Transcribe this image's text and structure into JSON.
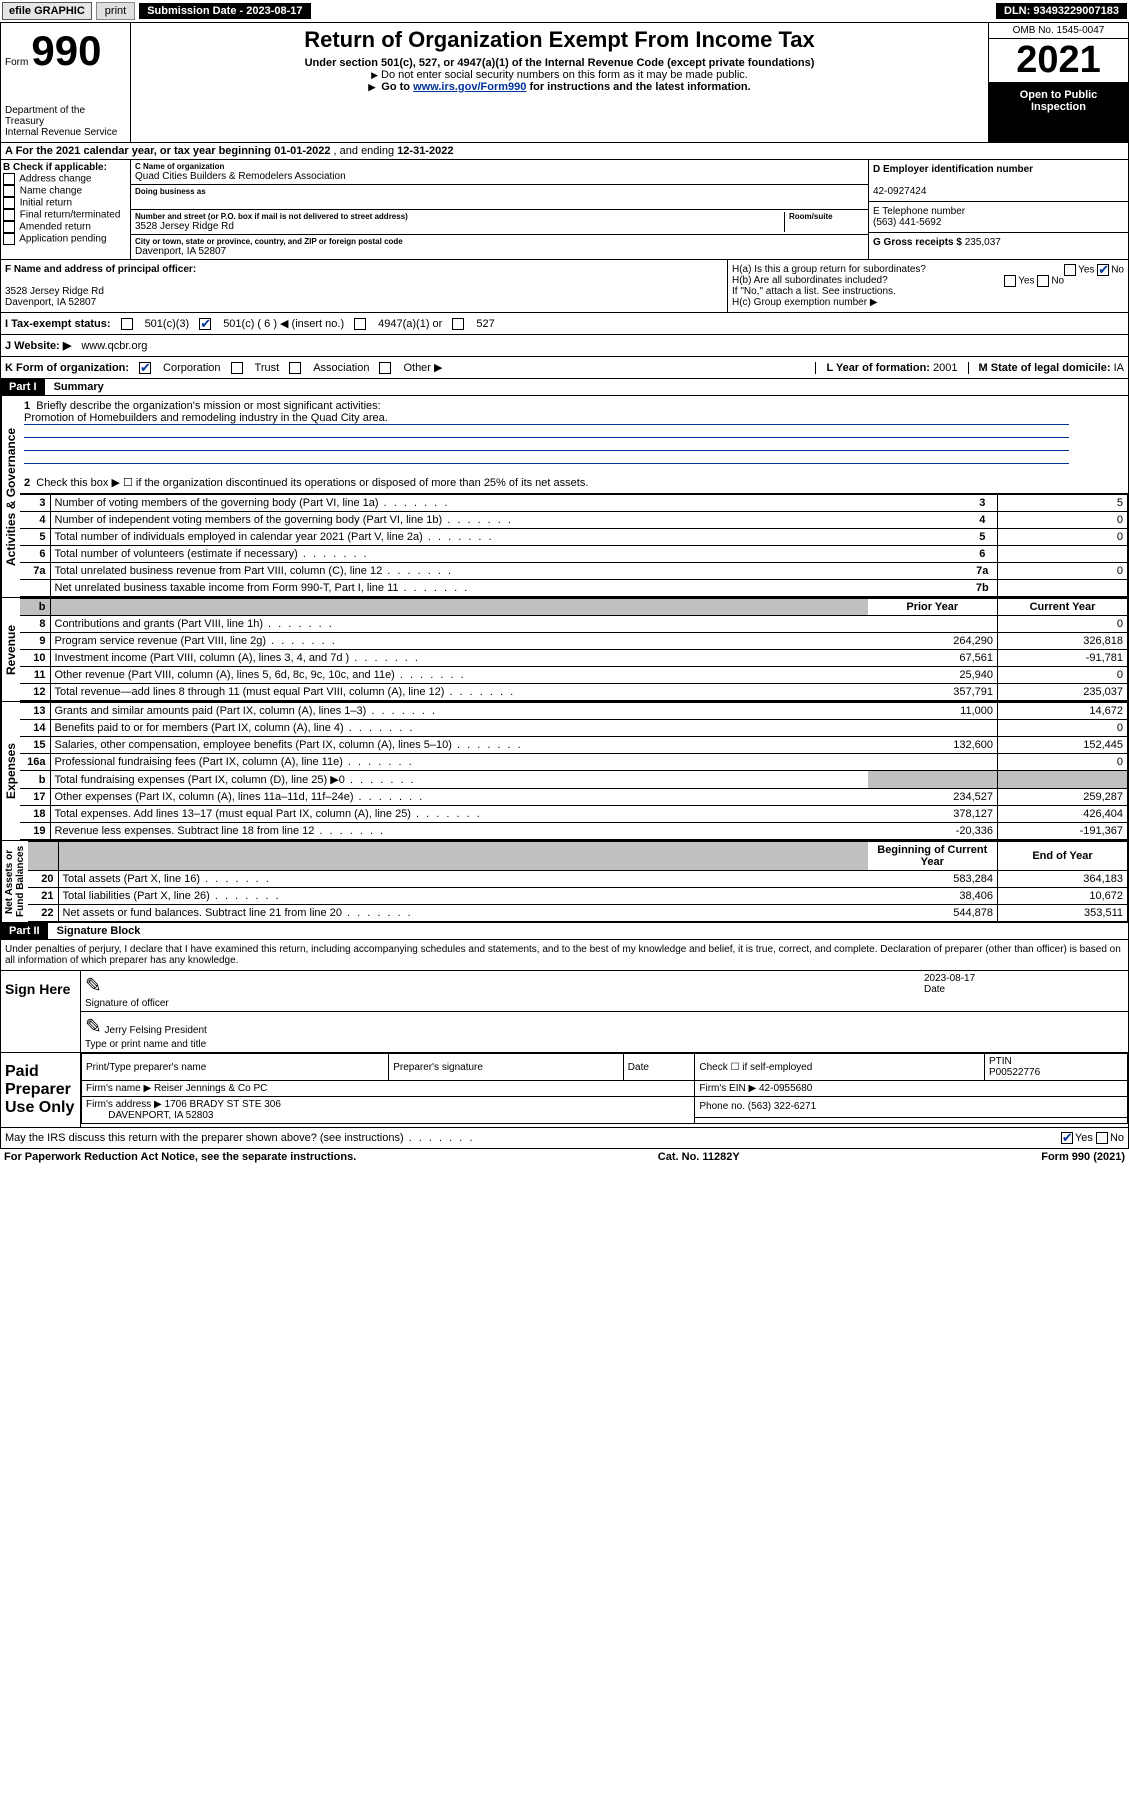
{
  "topbar": {
    "efile": "efile GRAPHIC",
    "print": "print",
    "submission_label": "Submission Date - 2023-08-17",
    "dln": "DLN: 93493229007183"
  },
  "header": {
    "form_label": "Form",
    "form_number": "990",
    "dept": "Department of the Treasury\nInternal Revenue Service",
    "title": "Return of Organization Exempt From Income Tax",
    "subtitle": "Under section 501(c), 527, or 4947(a)(1) of the Internal Revenue Code (except private foundations)",
    "sub2": "Do not enter social security numbers on this form as it may be made public.",
    "link_prefix": "Go to ",
    "link_url": "www.irs.gov/Form990",
    "link_suffix": " for instructions and the latest information.",
    "omb": "OMB No. 1545-0047",
    "tax_year": "2021",
    "open_public": "Open to Public Inspection"
  },
  "period": {
    "prefix": "A For the 2021 calendar year, or tax year beginning ",
    "begin": "01-01-2022",
    "mid": " , and ending ",
    "end": "12-31-2022"
  },
  "sectionB": {
    "label": "B Check if applicable:",
    "items": [
      "Address change",
      "Name change",
      "Initial return",
      "Final return/terminated",
      "Amended return",
      "Application pending"
    ]
  },
  "sectionC": {
    "name_label": "C Name of organization",
    "org_name": "Quad Cities Builders & Remodelers Association",
    "dba_label": "Doing business as",
    "addr_label": "Number and street (or P.O. box if mail is not delivered to street address)",
    "room_label": "Room/suite",
    "street": "3528 Jersey Ridge Rd",
    "city_label": "City or town, state or province, country, and ZIP or foreign postal code",
    "city": "Davenport, IA  52807"
  },
  "sectionD": {
    "label": "D Employer identification number",
    "ein": "42-0927424"
  },
  "sectionE": {
    "label": "E Telephone number",
    "phone": "(563) 441-5692"
  },
  "sectionG": {
    "label": "G Gross receipts $ ",
    "amount": "235,037"
  },
  "sectionF": {
    "label": "F Name and address of principal officer:",
    "addr": "3528 Jersey Ridge Rd\nDavenport, IA  52807"
  },
  "sectionH": {
    "ha": "H(a)  Is this a group return for subordinates?",
    "hb": "H(b)  Are all subordinates included?",
    "hb_note": "If \"No,\" attach a list. See instructions.",
    "hc": "H(c)  Group exemption number ▶"
  },
  "sectionI": {
    "label": "I  Tax-exempt status:",
    "o501c3": "501(c)(3)",
    "o501c": "501(c) ( 6 ) ◀ (insert no.)",
    "o4947": "4947(a)(1) or",
    "o527": "527"
  },
  "sectionJ": {
    "label": "J  Website: ▶",
    "url": "www.qcbr.org"
  },
  "sectionK": {
    "label": "K Form of organization:",
    "opts": [
      "Corporation",
      "Trust",
      "Association",
      "Other ▶"
    ]
  },
  "sectionL": {
    "label": "L Year of formation: ",
    "val": "2001"
  },
  "sectionM": {
    "label": "M State of legal domicile: ",
    "val": "IA"
  },
  "part1": {
    "header": "Part I",
    "title": "Summary",
    "line1_label": "Briefly describe the organization's mission or most significant activities:",
    "line1_text": "Promotion of Homebuilders and remodeling industry in the Quad City area.",
    "line2": "Check this box ▶ ☐  if the organization discontinued its operations or disposed of more than 25% of its net assets."
  },
  "governance_lines": [
    {
      "n": "3",
      "desc": "Number of voting members of the governing body (Part VI, line 1a)",
      "box": "3",
      "val": "5"
    },
    {
      "n": "4",
      "desc": "Number of independent voting members of the governing body (Part VI, line 1b)",
      "box": "4",
      "val": "0"
    },
    {
      "n": "5",
      "desc": "Total number of individuals employed in calendar year 2021 (Part V, line 2a)",
      "box": "5",
      "val": "0"
    },
    {
      "n": "6",
      "desc": "Total number of volunteers (estimate if necessary)",
      "box": "6",
      "val": ""
    },
    {
      "n": "7a",
      "desc": "Total unrelated business revenue from Part VIII, column (C), line 12",
      "box": "7a",
      "val": "0"
    },
    {
      "n": "",
      "desc": "Net unrelated business taxable income from Form 990-T, Part I, line 11",
      "box": "7b",
      "val": ""
    }
  ],
  "revenue_header": {
    "b": "b",
    "prior": "Prior Year",
    "current": "Current Year"
  },
  "revenue_lines": [
    {
      "n": "8",
      "desc": "Contributions and grants (Part VIII, line 1h)",
      "prior": "",
      "current": "0",
      "grey_prior": false
    },
    {
      "n": "9",
      "desc": "Program service revenue (Part VIII, line 2g)",
      "prior": "264,290",
      "current": "326,818"
    },
    {
      "n": "10",
      "desc": "Investment income (Part VIII, column (A), lines 3, 4, and 7d )",
      "prior": "67,561",
      "current": "-91,781"
    },
    {
      "n": "11",
      "desc": "Other revenue (Part VIII, column (A), lines 5, 6d, 8c, 9c, 10c, and 11e)",
      "prior": "25,940",
      "current": "0"
    },
    {
      "n": "12",
      "desc": "Total revenue—add lines 8 through 11 (must equal Part VIII, column (A), line 12)",
      "prior": "357,791",
      "current": "235,037"
    }
  ],
  "expense_lines": [
    {
      "n": "13",
      "desc": "Grants and similar amounts paid (Part IX, column (A), lines 1–3)",
      "prior": "11,000",
      "current": "14,672"
    },
    {
      "n": "14",
      "desc": "Benefits paid to or for members (Part IX, column (A), line 4)",
      "prior": "",
      "current": "0"
    },
    {
      "n": "15",
      "desc": "Salaries, other compensation, employee benefits (Part IX, column (A), lines 5–10)",
      "prior": "132,600",
      "current": "152,445"
    },
    {
      "n": "16a",
      "desc": "Professional fundraising fees (Part IX, column (A), line 11e)",
      "prior": "",
      "current": "0"
    },
    {
      "n": "b",
      "desc": "Total fundraising expenses (Part IX, column (D), line 25) ▶0",
      "prior": "grey",
      "current": "grey"
    },
    {
      "n": "17",
      "desc": "Other expenses (Part IX, column (A), lines 11a–11d, 11f–24e)",
      "prior": "234,527",
      "current": "259,287"
    },
    {
      "n": "18",
      "desc": "Total expenses. Add lines 13–17 (must equal Part IX, column (A), line 25)",
      "prior": "378,127",
      "current": "426,404"
    },
    {
      "n": "19",
      "desc": "Revenue less expenses. Subtract line 18 from line 12",
      "prior": "-20,336",
      "current": "-191,367"
    }
  ],
  "netassets_header": {
    "prior": "Beginning of Current Year",
    "current": "End of Year"
  },
  "netassets_lines": [
    {
      "n": "20",
      "desc": "Total assets (Part X, line 16)",
      "prior": "583,284",
      "current": "364,183"
    },
    {
      "n": "21",
      "desc": "Total liabilities (Part X, line 26)",
      "prior": "38,406",
      "current": "10,672"
    },
    {
      "n": "22",
      "desc": "Net assets or fund balances. Subtract line 21 from line 20",
      "prior": "544,878",
      "current": "353,511"
    }
  ],
  "part2": {
    "header": "Part II",
    "title": "Signature Block",
    "penalties": "Under penalties of perjury, I declare that I have examined this return, including accompanying schedules and statements, and to the best of my knowledge and belief, it is true, correct, and complete. Declaration of preparer (other than officer) is based on all information of which preparer has any knowledge."
  },
  "sign": {
    "here": "Sign Here",
    "sig_label": "Signature of officer",
    "date_label": "Date",
    "date": "2023-08-17",
    "name": "Jerry Felsing President",
    "name_label": "Type or print name and title"
  },
  "preparer": {
    "title": "Paid Preparer Use Only",
    "h_name": "Print/Type preparer's name",
    "h_sig": "Preparer's signature",
    "h_date": "Date",
    "h_check": "Check ☐ if self-employed",
    "h_ptin": "PTIN",
    "ptin": "P00522776",
    "firm_label": "Firm's name ▶",
    "firm": "Reiser Jennings & Co PC",
    "ein_label": "Firm's EIN ▶",
    "ein": "42-0955680",
    "addr_label": "Firm's address ▶",
    "addr1": "1706 BRADY ST STE 306",
    "addr2": "DAVENPORT, IA  52803",
    "phone_label": "Phone no. ",
    "phone": "(563) 322-6271"
  },
  "discuss": {
    "q": "May the IRS discuss this return with the preparer shown above? (see instructions)",
    "yes": "Yes",
    "no": "No"
  },
  "footer": {
    "paperwork": "For Paperwork Reduction Act Notice, see the separate instructions.",
    "cat": "Cat. No. 11282Y",
    "formno": "Form 990 (2021)"
  }
}
